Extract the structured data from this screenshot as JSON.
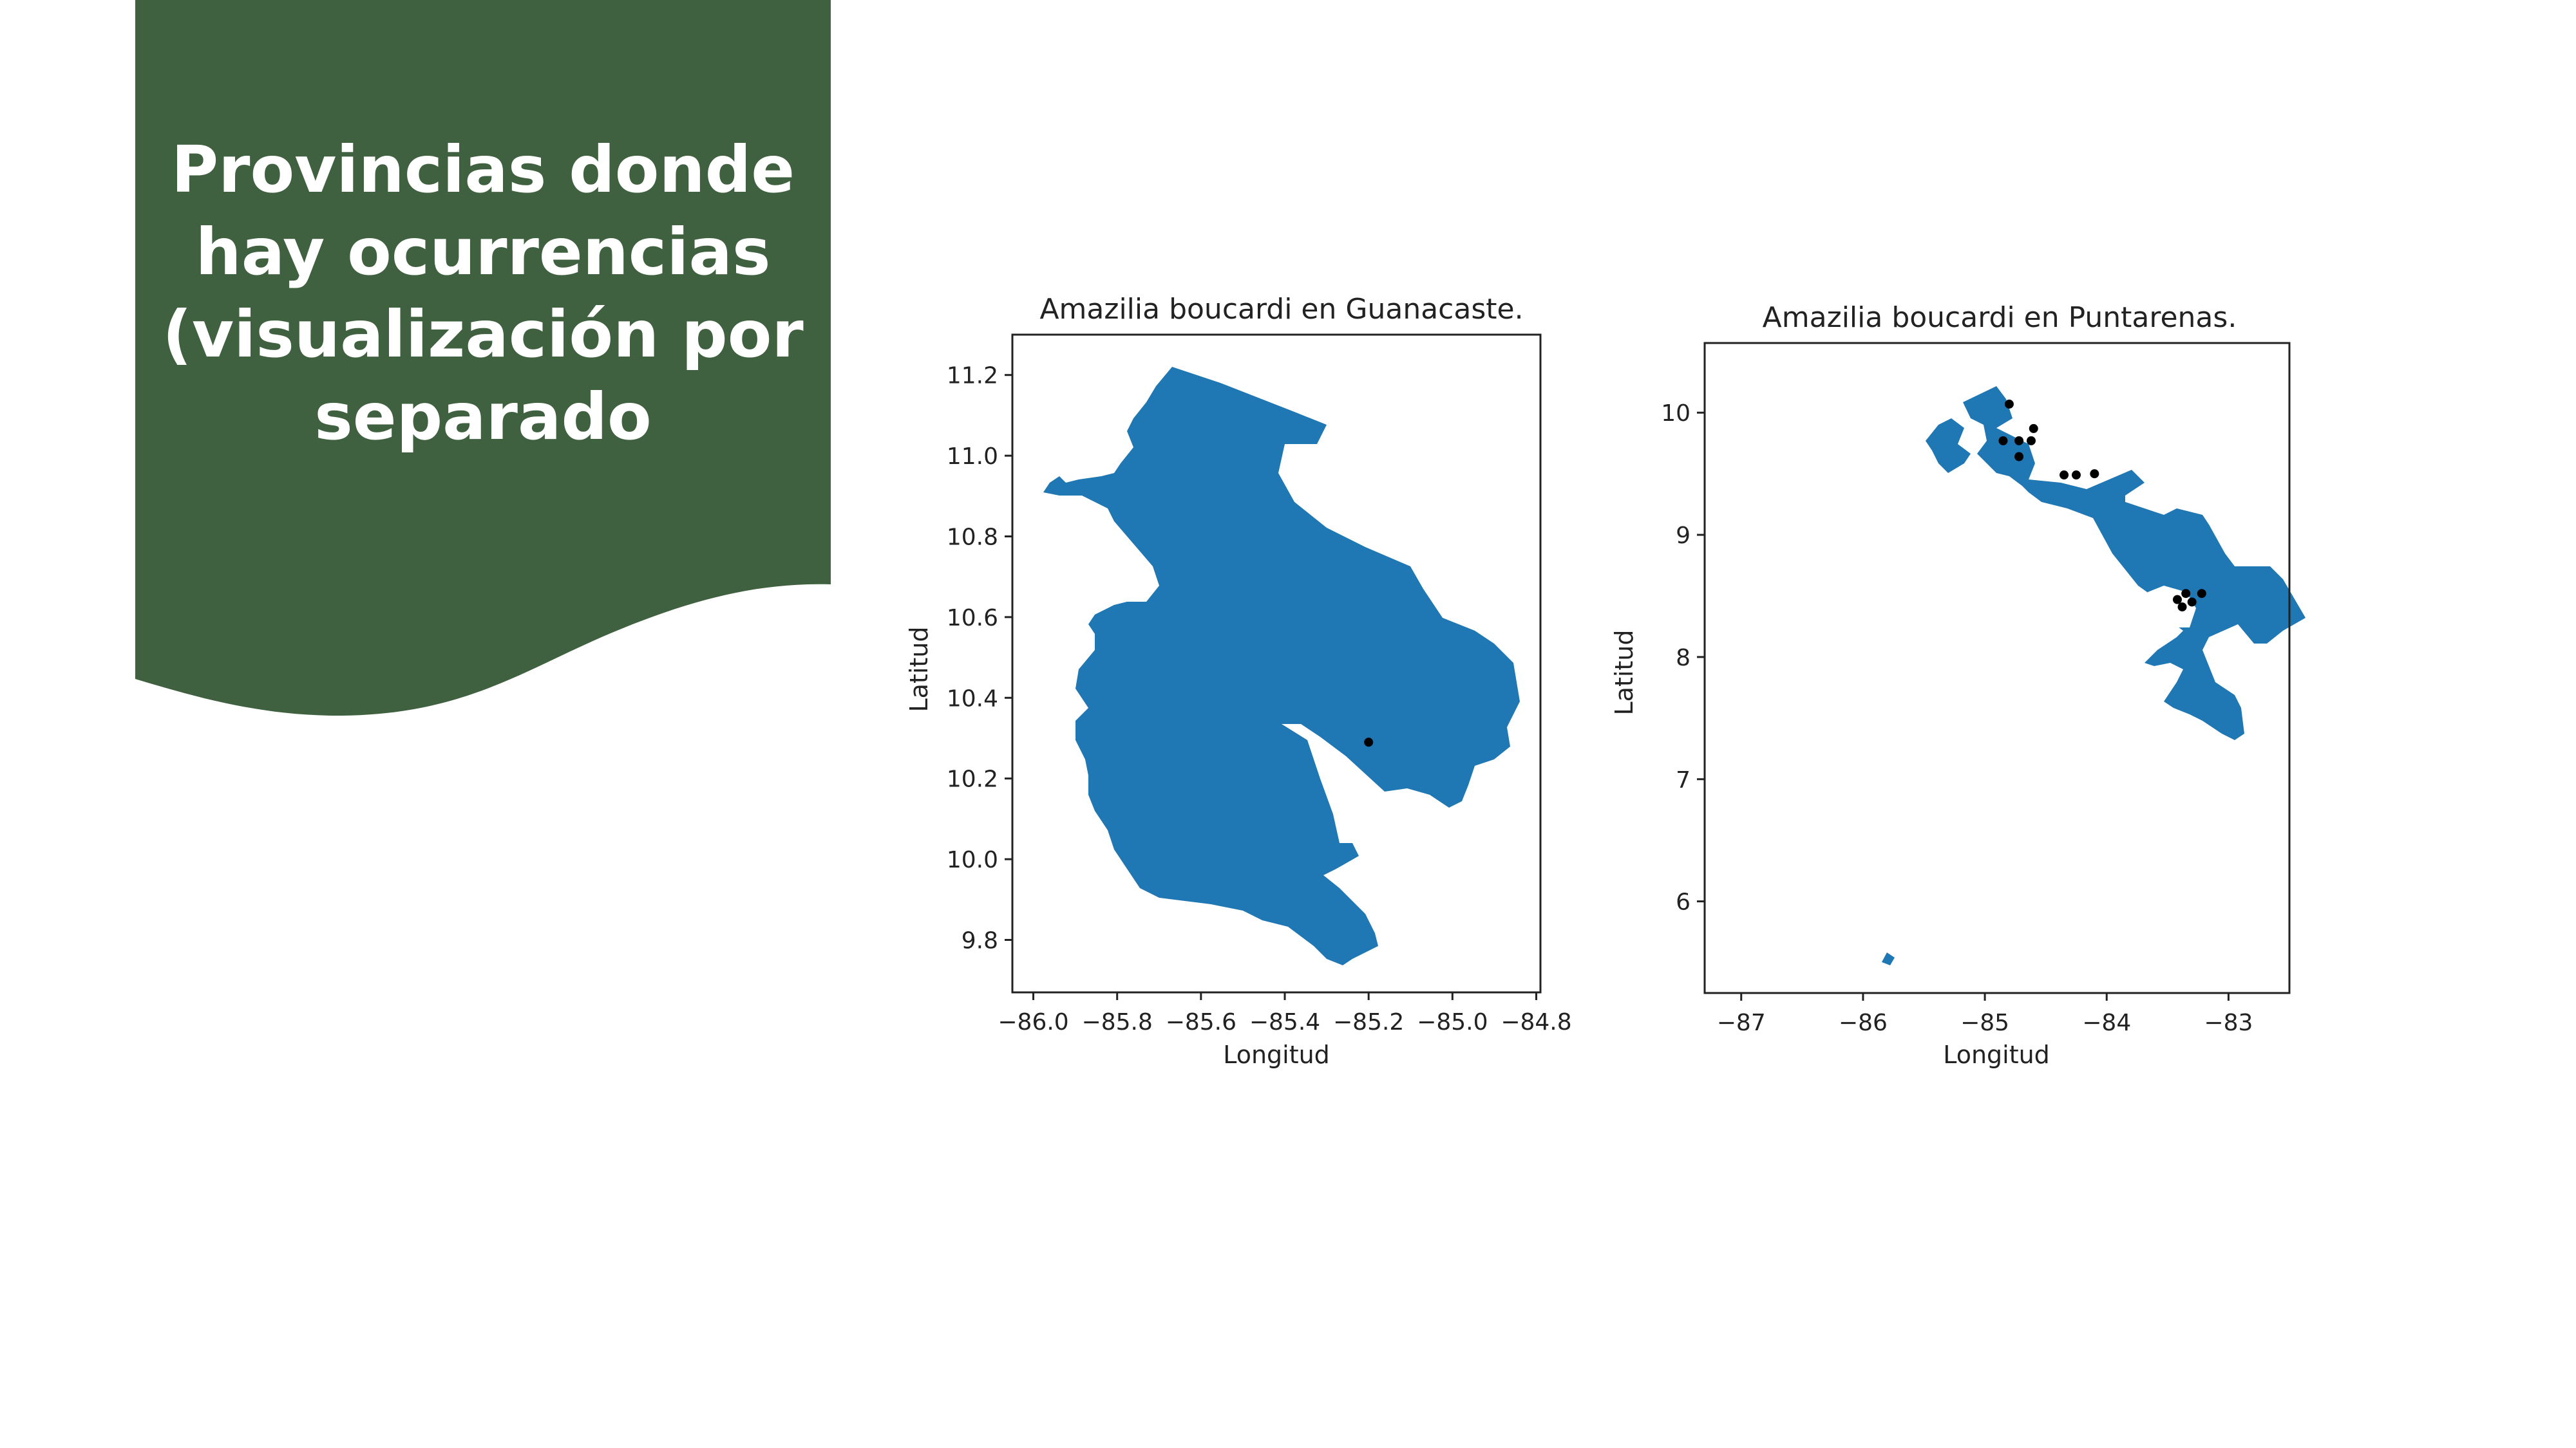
{
  "slide": {
    "title_lines": [
      "Provincias donde",
      "hay ocurrencias",
      "(visualización por",
      "separado"
    ],
    "panel_color": "#40613f"
  },
  "maps": [
    {
      "title": "Amazilia boucardi en Guanacaste.",
      "xlabel": "Longitud",
      "ylabel": "Latitud",
      "x_ticks": [
        "−86.0",
        "−85.8",
        "−85.6",
        "−85.4",
        "−85.2",
        "−85.0",
        "−84.8"
      ],
      "y_ticks": [
        "11.2",
        "11.0",
        "10.8",
        "10.6",
        "10.4",
        "10.2",
        "10.0",
        "9.8"
      ],
      "xlim": [
        -86.05,
        -84.79
      ],
      "ylim": [
        9.67,
        11.3
      ],
      "fill_color": "#1f77b4",
      "occurrences": [
        {
          "lon": -85.2,
          "lat": 10.29
        }
      ]
    },
    {
      "title": "Amazilia boucardi en Puntarenas.",
      "xlabel": "Longitud",
      "ylabel": "Latitud",
      "x_ticks": [
        "−87",
        "−86",
        "−85",
        "−84",
        "−83"
      ],
      "y_ticks": [
        "10",
        "9",
        "8",
        "7",
        "6"
      ],
      "xlim": [
        -87.3,
        -82.5
      ],
      "ylim": [
        5.25,
        10.57
      ],
      "fill_color": "#1f77b4",
      "occurrences": [
        {
          "lon": -84.8,
          "lat": 10.07
        },
        {
          "lon": -84.6,
          "lat": 9.87
        },
        {
          "lon": -84.85,
          "lat": 9.77
        },
        {
          "lon": -84.72,
          "lat": 9.77
        },
        {
          "lon": -84.62,
          "lat": 9.77
        },
        {
          "lon": -84.72,
          "lat": 9.64
        },
        {
          "lon": -84.35,
          "lat": 9.49
        },
        {
          "lon": -84.25,
          "lat": 9.49
        },
        {
          "lon": -84.1,
          "lat": 9.5
        },
        {
          "lon": -83.35,
          "lat": 8.52
        },
        {
          "lon": -83.22,
          "lat": 8.52
        },
        {
          "lon": -83.42,
          "lat": 8.47
        },
        {
          "lon": -83.3,
          "lat": 8.45
        },
        {
          "lon": -83.38,
          "lat": 8.41
        }
      ]
    }
  ]
}
